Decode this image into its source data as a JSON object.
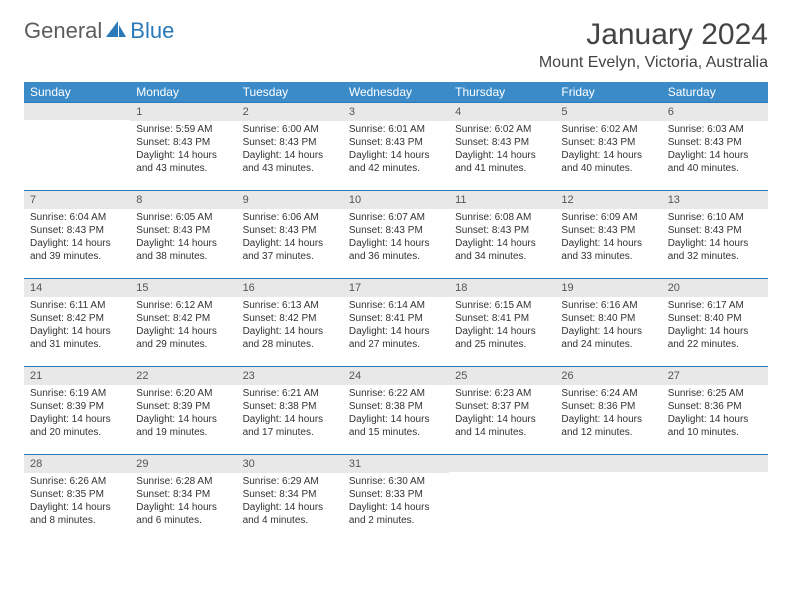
{
  "logo": {
    "text1": "General",
    "text2": "Blue"
  },
  "title": "January 2024",
  "location": "Mount Evelyn, Victoria, Australia",
  "colors": {
    "header_bg": "#3b8bc8",
    "header_fg": "#ffffff",
    "daynum_bg": "#e8e8e8",
    "rule": "#2a7ab9",
    "logo_blue": "#2a7ab9",
    "logo_gray": "#5c5c5c"
  },
  "weekdays": [
    "Sunday",
    "Monday",
    "Tuesday",
    "Wednesday",
    "Thursday",
    "Friday",
    "Saturday"
  ],
  "start_weekday": 1,
  "days_in_month": 31,
  "days": {
    "1": {
      "sunrise": "5:59 AM",
      "sunset": "8:43 PM",
      "daylight": "14 hours and 43 minutes."
    },
    "2": {
      "sunrise": "6:00 AM",
      "sunset": "8:43 PM",
      "daylight": "14 hours and 43 minutes."
    },
    "3": {
      "sunrise": "6:01 AM",
      "sunset": "8:43 PM",
      "daylight": "14 hours and 42 minutes."
    },
    "4": {
      "sunrise": "6:02 AM",
      "sunset": "8:43 PM",
      "daylight": "14 hours and 41 minutes."
    },
    "5": {
      "sunrise": "6:02 AM",
      "sunset": "8:43 PM",
      "daylight": "14 hours and 40 minutes."
    },
    "6": {
      "sunrise": "6:03 AM",
      "sunset": "8:43 PM",
      "daylight": "14 hours and 40 minutes."
    },
    "7": {
      "sunrise": "6:04 AM",
      "sunset": "8:43 PM",
      "daylight": "14 hours and 39 minutes."
    },
    "8": {
      "sunrise": "6:05 AM",
      "sunset": "8:43 PM",
      "daylight": "14 hours and 38 minutes."
    },
    "9": {
      "sunrise": "6:06 AM",
      "sunset": "8:43 PM",
      "daylight": "14 hours and 37 minutes."
    },
    "10": {
      "sunrise": "6:07 AM",
      "sunset": "8:43 PM",
      "daylight": "14 hours and 36 minutes."
    },
    "11": {
      "sunrise": "6:08 AM",
      "sunset": "8:43 PM",
      "daylight": "14 hours and 34 minutes."
    },
    "12": {
      "sunrise": "6:09 AM",
      "sunset": "8:43 PM",
      "daylight": "14 hours and 33 minutes."
    },
    "13": {
      "sunrise": "6:10 AM",
      "sunset": "8:43 PM",
      "daylight": "14 hours and 32 minutes."
    },
    "14": {
      "sunrise": "6:11 AM",
      "sunset": "8:42 PM",
      "daylight": "14 hours and 31 minutes."
    },
    "15": {
      "sunrise": "6:12 AM",
      "sunset": "8:42 PM",
      "daylight": "14 hours and 29 minutes."
    },
    "16": {
      "sunrise": "6:13 AM",
      "sunset": "8:42 PM",
      "daylight": "14 hours and 28 minutes."
    },
    "17": {
      "sunrise": "6:14 AM",
      "sunset": "8:41 PM",
      "daylight": "14 hours and 27 minutes."
    },
    "18": {
      "sunrise": "6:15 AM",
      "sunset": "8:41 PM",
      "daylight": "14 hours and 25 minutes."
    },
    "19": {
      "sunrise": "6:16 AM",
      "sunset": "8:40 PM",
      "daylight": "14 hours and 24 minutes."
    },
    "20": {
      "sunrise": "6:17 AM",
      "sunset": "8:40 PM",
      "daylight": "14 hours and 22 minutes."
    },
    "21": {
      "sunrise": "6:19 AM",
      "sunset": "8:39 PM",
      "daylight": "14 hours and 20 minutes."
    },
    "22": {
      "sunrise": "6:20 AM",
      "sunset": "8:39 PM",
      "daylight": "14 hours and 19 minutes."
    },
    "23": {
      "sunrise": "6:21 AM",
      "sunset": "8:38 PM",
      "daylight": "14 hours and 17 minutes."
    },
    "24": {
      "sunrise": "6:22 AM",
      "sunset": "8:38 PM",
      "daylight": "14 hours and 15 minutes."
    },
    "25": {
      "sunrise": "6:23 AM",
      "sunset": "8:37 PM",
      "daylight": "14 hours and 14 minutes."
    },
    "26": {
      "sunrise": "6:24 AM",
      "sunset": "8:36 PM",
      "daylight": "14 hours and 12 minutes."
    },
    "27": {
      "sunrise": "6:25 AM",
      "sunset": "8:36 PM",
      "daylight": "14 hours and 10 minutes."
    },
    "28": {
      "sunrise": "6:26 AM",
      "sunset": "8:35 PM",
      "daylight": "14 hours and 8 minutes."
    },
    "29": {
      "sunrise": "6:28 AM",
      "sunset": "8:34 PM",
      "daylight": "14 hours and 6 minutes."
    },
    "30": {
      "sunrise": "6:29 AM",
      "sunset": "8:34 PM",
      "daylight": "14 hours and 4 minutes."
    },
    "31": {
      "sunrise": "6:30 AM",
      "sunset": "8:33 PM",
      "daylight": "14 hours and 2 minutes."
    }
  },
  "labels": {
    "sunrise": "Sunrise:",
    "sunset": "Sunset:",
    "daylight": "Daylight:"
  }
}
